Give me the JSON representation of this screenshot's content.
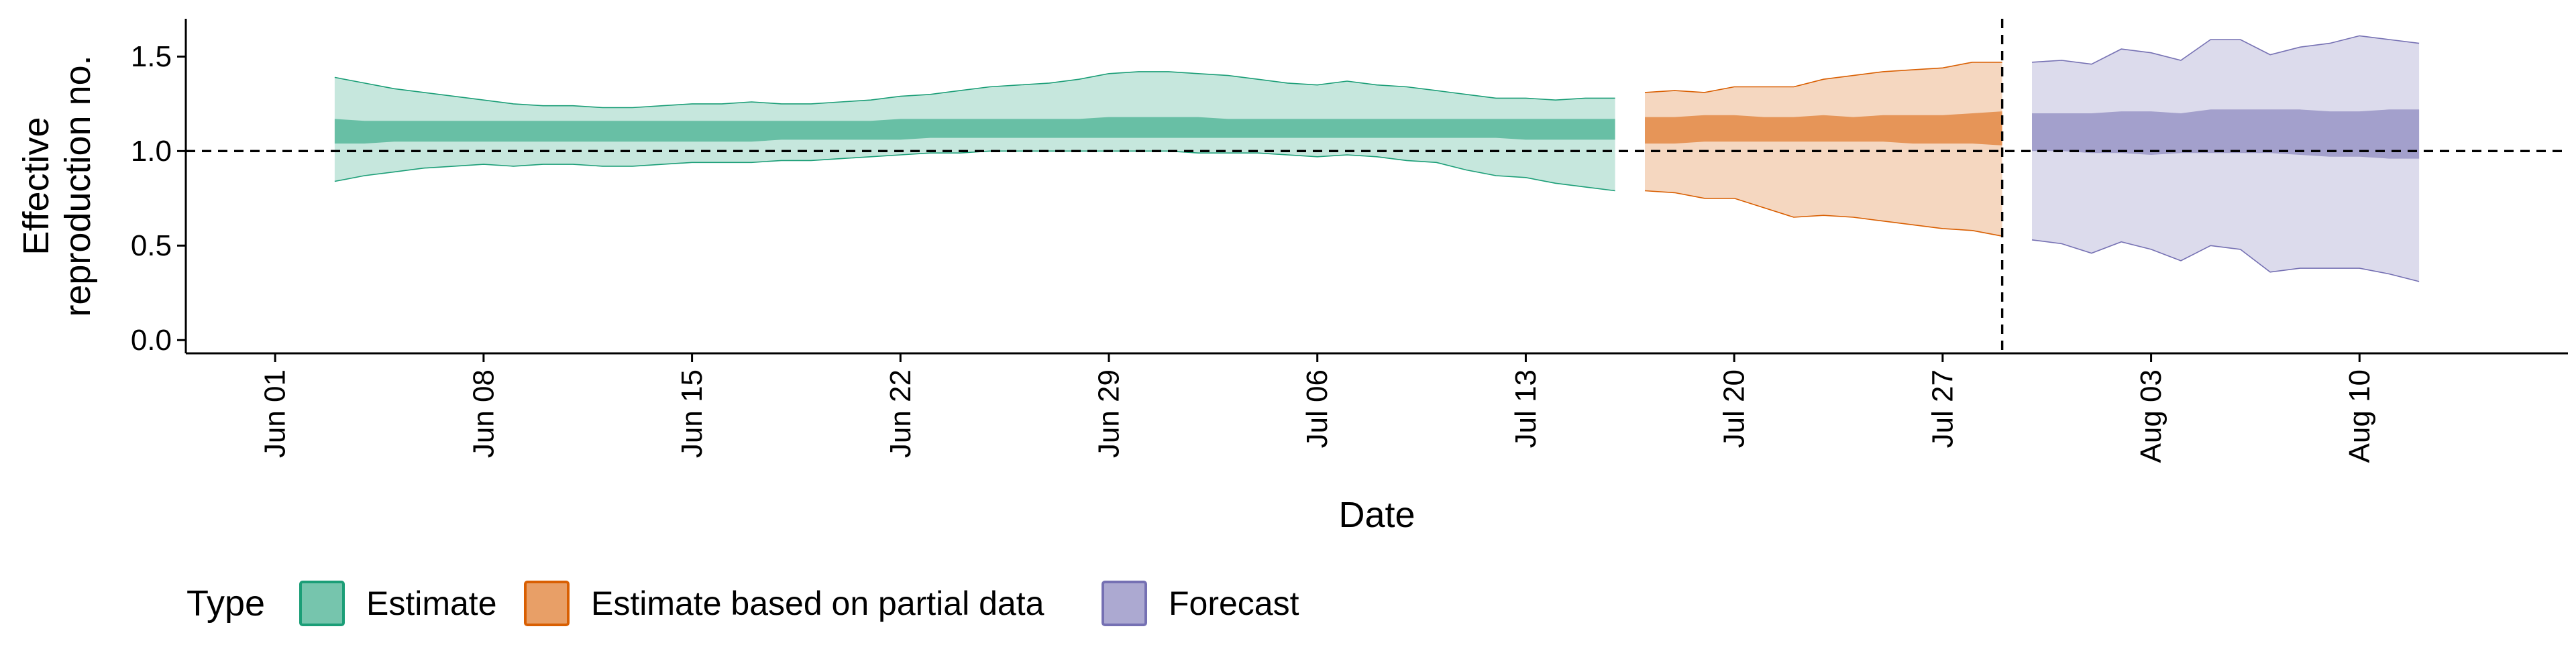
{
  "chart_data": {
    "type": "area",
    "title": "",
    "xlabel": "Date",
    "ylabel_lines": [
      "Effective",
      "reproduction no."
    ],
    "ylim": [
      -0.07,
      1.7
    ],
    "yticks": [
      0.0,
      0.5,
      1.0,
      1.5
    ],
    "ytick_labels": [
      "0.0",
      "0.5",
      "1.0",
      "1.5"
    ],
    "x_start": "2020-05-29",
    "x_end": "2020-08-17",
    "xticks": [
      "2020-06-01",
      "2020-06-08",
      "2020-06-15",
      "2020-06-22",
      "2020-06-29",
      "2020-07-06",
      "2020-07-13",
      "2020-07-20",
      "2020-07-27",
      "2020-08-03",
      "2020-08-10"
    ],
    "xtick_labels": [
      "Jun 01",
      "Jun 08",
      "Jun 15",
      "Jun 22",
      "Jun 29",
      "Jul 06",
      "Jul 13",
      "Jul 20",
      "Jul 27",
      "Aug 03",
      "Aug 10"
    ],
    "reference_hline": 1.0,
    "reference_vline": "2020-07-29",
    "grid": false,
    "legend_position": "bottom-left",
    "legend_title": "Type",
    "series": [
      {
        "name": "Estimate",
        "fill": "#1b9e77",
        "dates": [
          "2020-06-03",
          "2020-06-04",
          "2020-06-05",
          "2020-06-06",
          "2020-06-07",
          "2020-06-08",
          "2020-06-09",
          "2020-06-10",
          "2020-06-11",
          "2020-06-12",
          "2020-06-13",
          "2020-06-14",
          "2020-06-15",
          "2020-06-16",
          "2020-06-17",
          "2020-06-18",
          "2020-06-19",
          "2020-06-20",
          "2020-06-21",
          "2020-06-22",
          "2020-06-23",
          "2020-06-24",
          "2020-06-25",
          "2020-06-26",
          "2020-06-27",
          "2020-06-28",
          "2020-06-29",
          "2020-06-30",
          "2020-07-01",
          "2020-07-02",
          "2020-07-03",
          "2020-07-04",
          "2020-07-05",
          "2020-07-06",
          "2020-07-07",
          "2020-07-08",
          "2020-07-09",
          "2020-07-10",
          "2020-07-11",
          "2020-07-12",
          "2020-07-13",
          "2020-07-14",
          "2020-07-15",
          "2020-07-16"
        ],
        "lower_90": [
          0.84,
          0.87,
          0.89,
          0.91,
          0.92,
          0.93,
          0.92,
          0.93,
          0.93,
          0.92,
          0.92,
          0.93,
          0.94,
          0.94,
          0.94,
          0.95,
          0.95,
          0.96,
          0.97,
          0.98,
          0.99,
          0.99,
          1.0,
          1.0,
          1.0,
          1.0,
          1.0,
          1.0,
          1.0,
          0.99,
          0.99,
          0.99,
          0.98,
          0.97,
          0.98,
          0.97,
          0.95,
          0.94,
          0.9,
          0.87,
          0.86,
          0.83,
          0.81,
          0.79
        ],
        "upper_90": [
          1.39,
          1.36,
          1.33,
          1.31,
          1.29,
          1.27,
          1.25,
          1.24,
          1.24,
          1.23,
          1.23,
          1.24,
          1.25,
          1.25,
          1.26,
          1.25,
          1.25,
          1.26,
          1.27,
          1.29,
          1.3,
          1.32,
          1.34,
          1.35,
          1.36,
          1.38,
          1.41,
          1.42,
          1.42,
          1.41,
          1.4,
          1.38,
          1.36,
          1.35,
          1.37,
          1.35,
          1.34,
          1.32,
          1.3,
          1.28,
          1.28,
          1.27,
          1.28,
          1.28
        ],
        "lower_50": [
          1.04,
          1.04,
          1.05,
          1.05,
          1.05,
          1.05,
          1.05,
          1.05,
          1.05,
          1.05,
          1.05,
          1.05,
          1.05,
          1.05,
          1.05,
          1.06,
          1.06,
          1.06,
          1.06,
          1.06,
          1.07,
          1.07,
          1.07,
          1.07,
          1.07,
          1.07,
          1.07,
          1.07,
          1.07,
          1.07,
          1.07,
          1.07,
          1.07,
          1.07,
          1.07,
          1.07,
          1.07,
          1.07,
          1.07,
          1.07,
          1.06,
          1.06,
          1.06,
          1.06
        ],
        "upper_50": [
          1.17,
          1.16,
          1.16,
          1.16,
          1.16,
          1.16,
          1.16,
          1.16,
          1.16,
          1.16,
          1.16,
          1.16,
          1.16,
          1.16,
          1.16,
          1.16,
          1.16,
          1.16,
          1.16,
          1.17,
          1.17,
          1.17,
          1.17,
          1.17,
          1.17,
          1.17,
          1.18,
          1.18,
          1.18,
          1.18,
          1.17,
          1.17,
          1.17,
          1.17,
          1.17,
          1.17,
          1.17,
          1.17,
          1.17,
          1.17,
          1.17,
          1.17,
          1.17,
          1.17
        ]
      },
      {
        "name": "Estimate based on partial data",
        "fill": "#d95f02",
        "dates": [
          "2020-07-17",
          "2020-07-18",
          "2020-07-19",
          "2020-07-20",
          "2020-07-21",
          "2020-07-22",
          "2020-07-23",
          "2020-07-24",
          "2020-07-25",
          "2020-07-26",
          "2020-07-27",
          "2020-07-28",
          "2020-07-29"
        ],
        "lower_90": [
          0.79,
          0.78,
          0.75,
          0.75,
          0.7,
          0.65,
          0.66,
          0.65,
          0.63,
          0.61,
          0.59,
          0.58,
          0.55
        ],
        "upper_90": [
          1.31,
          1.32,
          1.31,
          1.34,
          1.34,
          1.34,
          1.38,
          1.4,
          1.42,
          1.43,
          1.44,
          1.47,
          1.47
        ],
        "lower_50": [
          1.04,
          1.04,
          1.05,
          1.05,
          1.05,
          1.05,
          1.05,
          1.05,
          1.05,
          1.04,
          1.04,
          1.04,
          1.03
        ],
        "upper_50": [
          1.18,
          1.18,
          1.19,
          1.19,
          1.18,
          1.18,
          1.19,
          1.18,
          1.19,
          1.19,
          1.19,
          1.2,
          1.21
        ]
      },
      {
        "name": "Forecast",
        "fill": "#7570b3",
        "dates": [
          "2020-07-30",
          "2020-07-31",
          "2020-08-01",
          "2020-08-02",
          "2020-08-03",
          "2020-08-04",
          "2020-08-05",
          "2020-08-06",
          "2020-08-07",
          "2020-08-08",
          "2020-08-09",
          "2020-08-10",
          "2020-08-11",
          "2020-08-12"
        ],
        "lower_90": [
          0.53,
          0.51,
          0.46,
          0.52,
          0.48,
          0.42,
          0.5,
          0.48,
          0.36,
          0.38,
          0.38,
          0.38,
          0.35,
          0.31
        ],
        "upper_90": [
          1.47,
          1.48,
          1.46,
          1.54,
          1.52,
          1.48,
          1.59,
          1.59,
          1.51,
          1.55,
          1.57,
          1.61,
          1.59,
          1.57
        ],
        "lower_50": [
          1.0,
          1.0,
          0.99,
          0.99,
          0.98,
          0.99,
          0.99,
          0.99,
          0.99,
          0.98,
          0.97,
          0.97,
          0.96,
          0.96
        ],
        "upper_50": [
          1.2,
          1.2,
          1.2,
          1.21,
          1.21,
          1.2,
          1.22,
          1.22,
          1.22,
          1.22,
          1.21,
          1.21,
          1.22,
          1.22
        ]
      }
    ]
  }
}
